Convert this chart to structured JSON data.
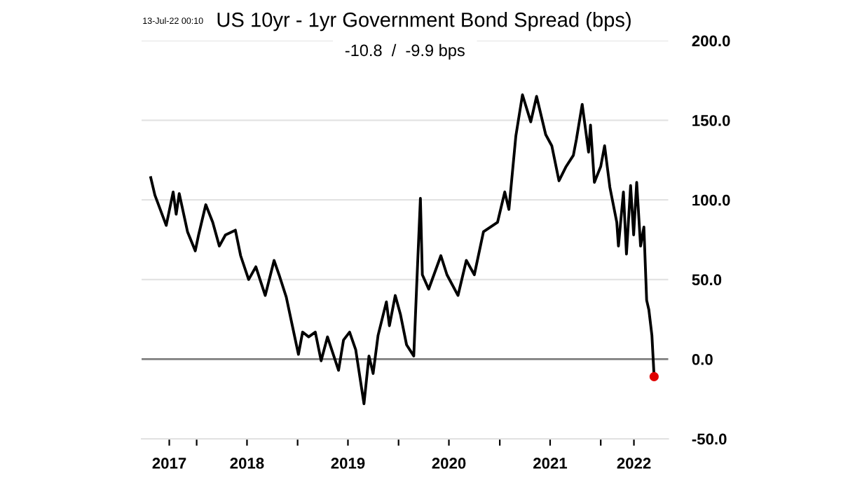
{
  "chart_data": {
    "type": "line",
    "title": "US 10yr - 1yr Government Bond Spread (bps)",
    "subtitle": "-10.8  /  -9.9 bps",
    "annotations": [
      "13-Jul-22 00:10"
    ],
    "series": [
      {
        "color": "#000000",
        "x": [
          "2017-07-19",
          "2017-08-03",
          "2017-09-13",
          "2017-10-08",
          "2017-10-19",
          "2017-10-30",
          "2017-11-29",
          "2017-12-27",
          "2018-01-08",
          "2018-02-03",
          "2018-02-28",
          "2018-03-24",
          "2018-04-15",
          "2018-05-21",
          "2018-06-09",
          "2018-07-08",
          "2018-08-03",
          "2018-09-06",
          "2018-10-08",
          "2018-10-26",
          "2018-11-21",
          "2018-12-13",
          "2019-01-04",
          "2019-01-19",
          "2019-02-10",
          "2019-03-06",
          "2019-03-27",
          "2019-04-19",
          "2019-05-29",
          "2019-06-16",
          "2019-07-08",
          "2019-07-30",
          "2019-08-29",
          "2019-09-16",
          "2019-10-01",
          "2019-10-19",
          "2019-11-18",
          "2019-11-29",
          "2019-12-20",
          "2020-01-08",
          "2020-01-30",
          "2020-02-25",
          "2020-03-06",
          "2020-03-20",
          "2020-03-27",
          "2020-04-19",
          "2020-06-02",
          "2020-06-24",
          "2020-08-03",
          "2020-09-02",
          "2020-10-01",
          "2020-11-03",
          "2020-12-24",
          "2021-01-19",
          "2021-02-03",
          "2021-02-28",
          "2021-03-24",
          "2021-04-23",
          "2021-05-14",
          "2021-06-16",
          "2021-07-08",
          "2021-08-03",
          "2021-08-29",
          "2021-09-24",
          "2021-10-05",
          "2021-10-26",
          "2021-11-18",
          "2021-11-25",
          "2021-12-09",
          "2022-01-01",
          "2022-01-15",
          "2022-02-03",
          "2022-02-28",
          "2022-03-06",
          "2022-03-24",
          "2022-04-04",
          "2022-04-19",
          "2022-04-30",
          "2022-05-11",
          "2022-05-25",
          "2022-06-06",
          "2022-06-16",
          "2022-06-24",
          "2022-07-05",
          "2022-07-13"
        ],
        "values": [
          114,
          103,
          84,
          105,
          91,
          104,
          80,
          68,
          78,
          97,
          86,
          71,
          78,
          81,
          65,
          50,
          58,
          40,
          62,
          53,
          39,
          21,
          3,
          17,
          14,
          17,
          -1,
          14,
          -7,
          12,
          17,
          6,
          -28,
          2,
          -9,
          15,
          36,
          21,
          40,
          28,
          9,
          2,
          44,
          101,
          53,
          44,
          65,
          53,
          40,
          62,
          53,
          80,
          86,
          105,
          94,
          140,
          166,
          149,
          165,
          141,
          134,
          112,
          121,
          128,
          138,
          160,
          130,
          147,
          111,
          121,
          134,
          108,
          86,
          71,
          105,
          66,
          109,
          78,
          111,
          71,
          83,
          37,
          31,
          15,
          -11
        ]
      },
      {
        "type": "scatter",
        "color": "#e00000",
        "x": [
          "2022-07-13"
        ],
        "values": [
          -11
        ]
      }
    ],
    "xlim": [
      "2017-06-16",
      "2022-09-02"
    ],
    "xticks": [
      {
        "value": "2017-09-24",
        "label": "2017"
      },
      {
        "value": "2018-01-01",
        "label": null
      },
      {
        "value": "2018-07-02",
        "label": "2018"
      },
      {
        "value": "2019-01-01",
        "label": null
      },
      {
        "value": "2019-07-02",
        "label": "2019"
      },
      {
        "value": "2020-01-01",
        "label": null
      },
      {
        "value": "2020-07-01",
        "label": "2020"
      },
      {
        "value": "2021-01-01",
        "label": null
      },
      {
        "value": "2021-07-02",
        "label": "2021"
      },
      {
        "value": "2022-01-01",
        "label": null
      },
      {
        "value": "2022-05-01",
        "label": "2022"
      }
    ],
    "ylim": [
      -50,
      200
    ],
    "yticks": [
      {
        "value": -50,
        "label": "-50.0"
      },
      {
        "value": 0,
        "label": "0.0"
      },
      {
        "value": 50,
        "label": "50.0"
      },
      {
        "value": 100,
        "label": "100.0"
      },
      {
        "value": 150,
        "label": "150.0"
      },
      {
        "value": 200,
        "label": "200.0"
      }
    ],
    "ref_lines": [
      {
        "axis": "y",
        "value": 0,
        "label": null,
        "color": "#808080"
      }
    ],
    "grid": "y",
    "legend": false,
    "line_style": "solid"
  }
}
